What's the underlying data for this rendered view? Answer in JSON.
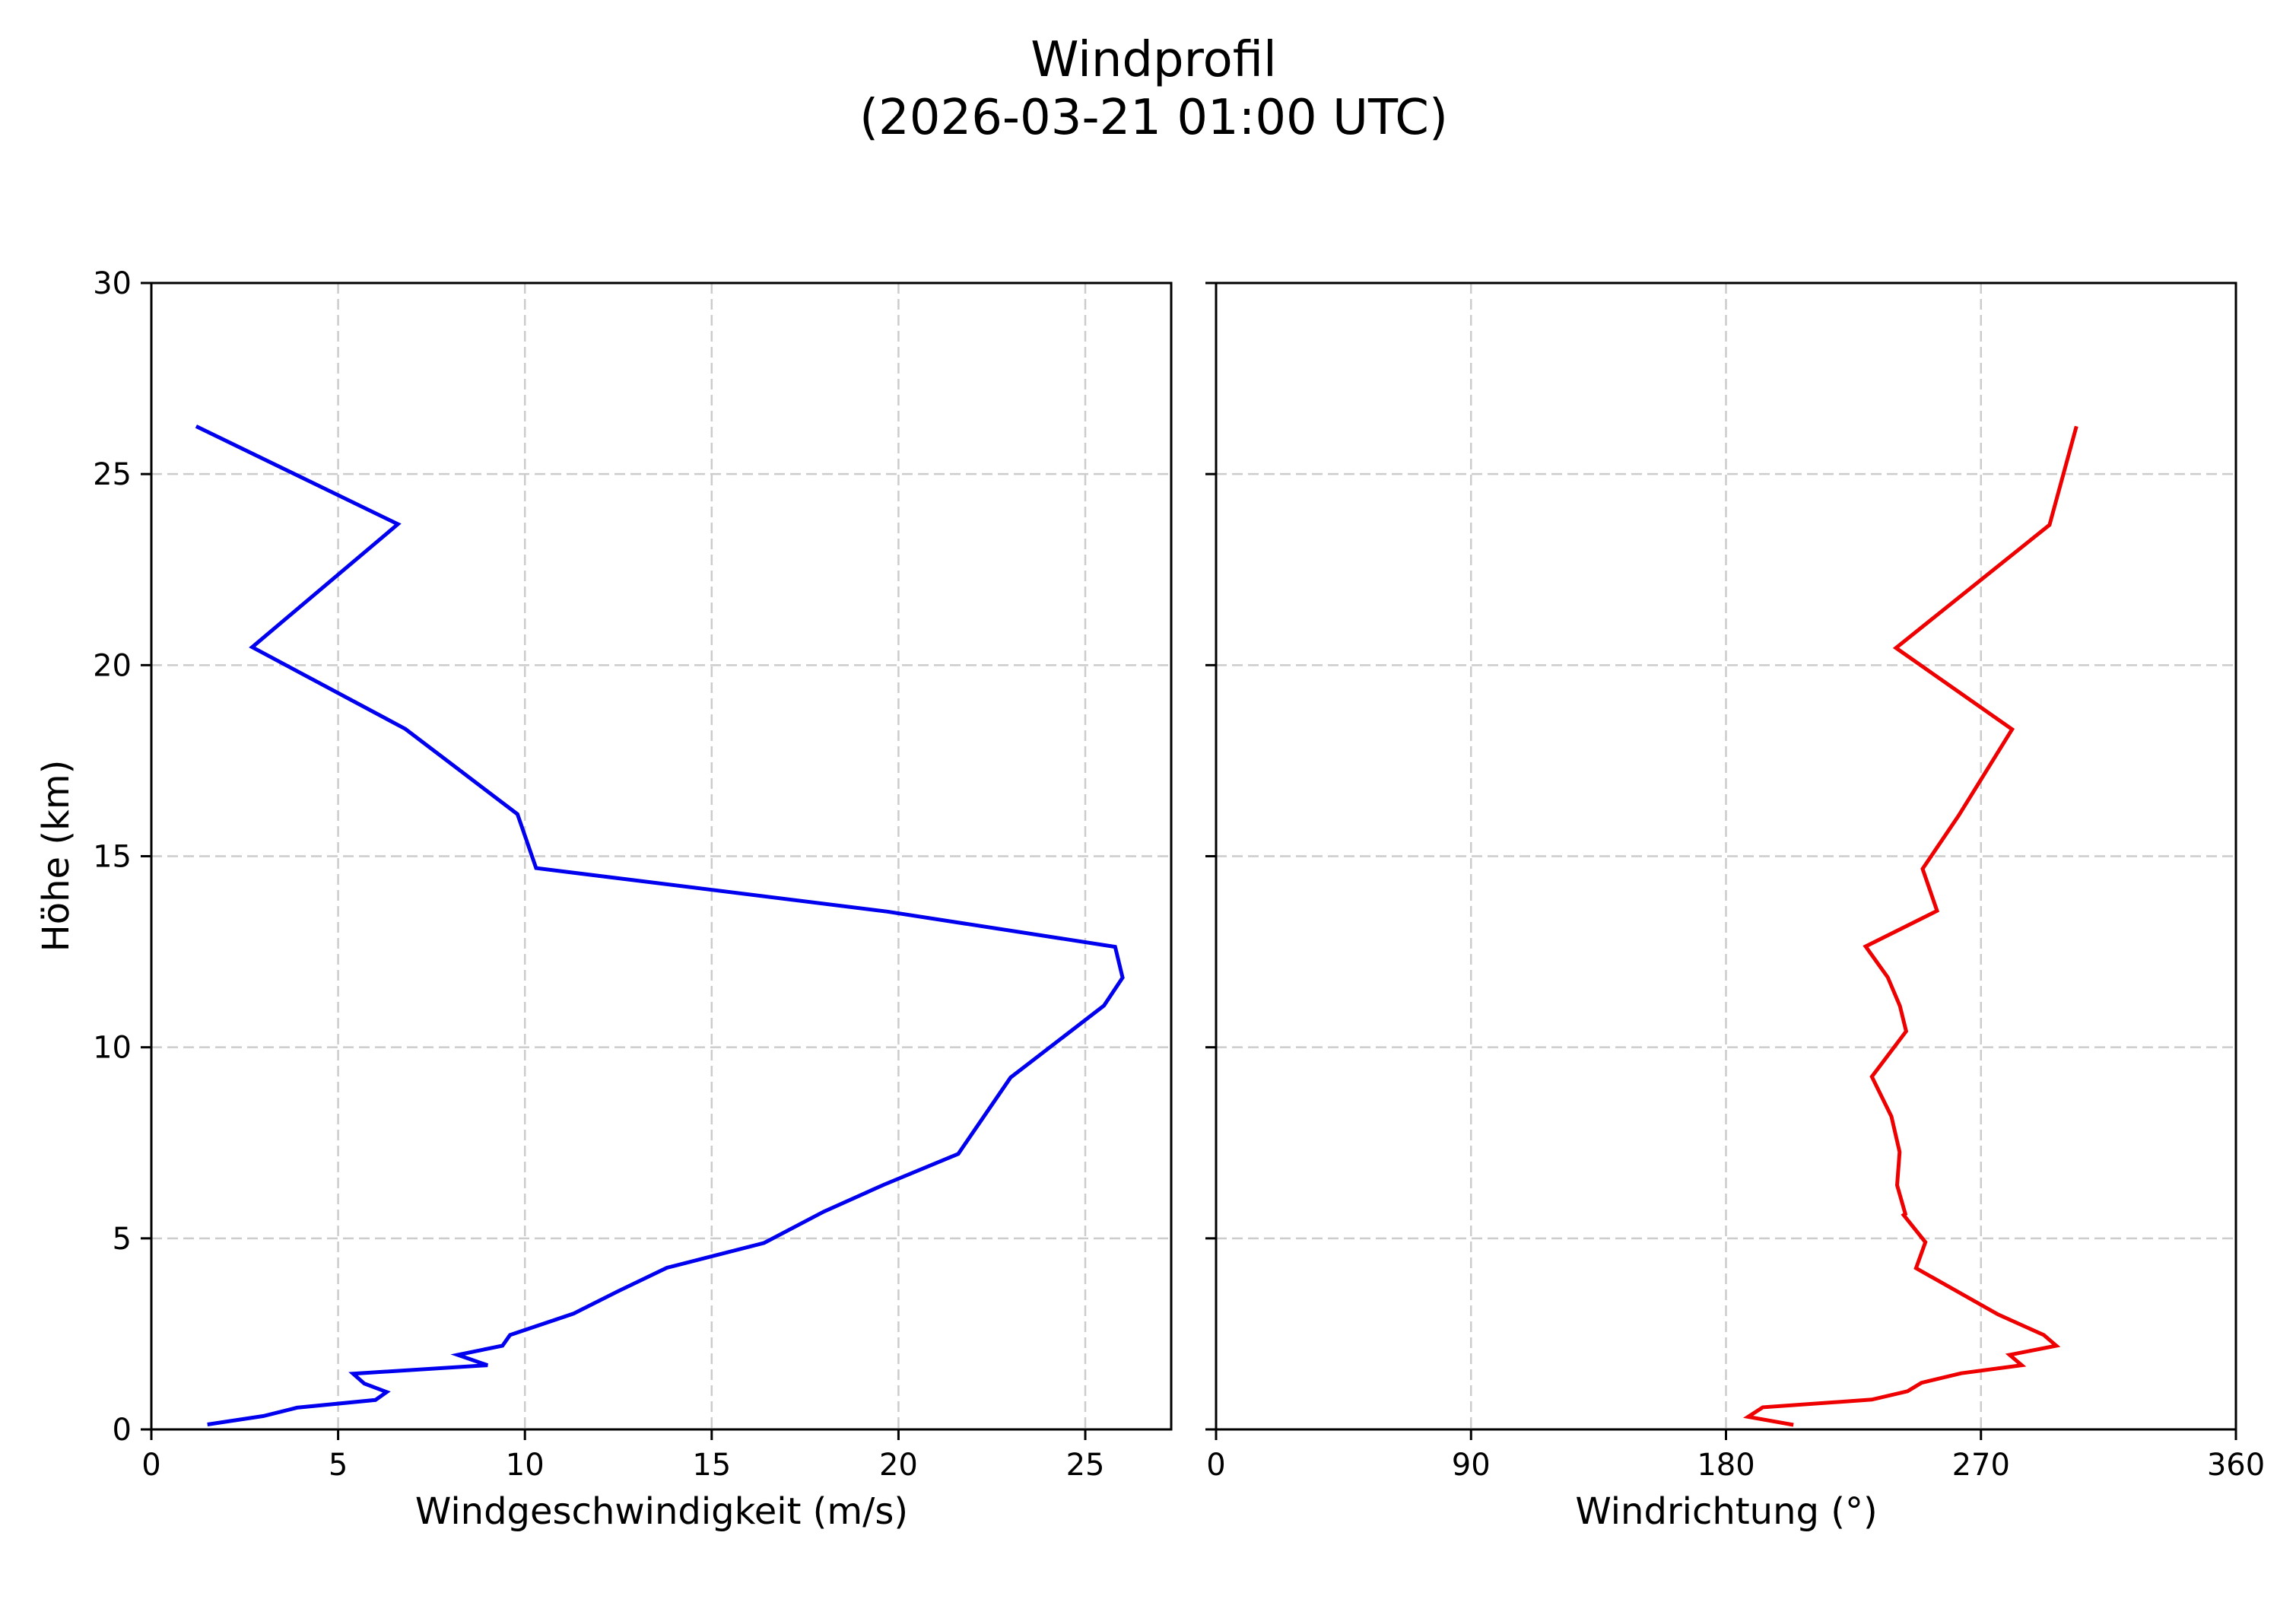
{
  "title": {
    "line1": "Windprofil",
    "line2": "(2026-03-21 01:00 UTC)"
  },
  "colors": {
    "speed_line": "#0000ee",
    "direction_line": "#ee0000",
    "grid": "#cccccc",
    "axis": "#000000"
  },
  "chart_data": [
    {
      "type": "line",
      "title": "Windprofil (2026-03-21 01:00 UTC)",
      "xlabel": "Windgeschwindigkeit (m/s)",
      "ylabel": "Höhe (km)",
      "xlim": [
        0,
        27.3
      ],
      "ylim": [
        0,
        30
      ],
      "xticks": [
        0,
        5,
        10,
        15,
        20,
        25
      ],
      "yticks": [
        0,
        5,
        10,
        15,
        20,
        25,
        30
      ],
      "grid": true,
      "grid_style": "dashed",
      "series": [
        {
          "name": "Windgeschwindigkeit",
          "color": "#0000ee",
          "x": [
            1.5,
            3.0,
            3.9,
            6.0,
            6.3,
            5.7,
            5.4,
            9.0,
            8.2,
            9.4,
            9.6,
            11.3,
            12.5,
            13.8,
            16.4,
            18.0,
            19.6,
            21.6,
            23.0,
            25.5,
            26.0,
            25.8,
            19.7,
            10.3,
            9.8,
            6.8,
            2.7,
            6.6,
            1.2
          ],
          "y": [
            0.13,
            0.35,
            0.57,
            0.77,
            0.98,
            1.2,
            1.46,
            1.68,
            1.95,
            2.19,
            2.47,
            3.03,
            3.62,
            4.23,
            4.88,
            5.7,
            6.4,
            7.21,
            9.21,
            11.09,
            11.82,
            12.63,
            13.55,
            14.69,
            16.1,
            18.33,
            20.47,
            23.69,
            26.25
          ]
        }
      ]
    },
    {
      "type": "line",
      "xlabel": "Windrichtung (°)",
      "ylabel": "",
      "xlim": [
        0,
        360
      ],
      "ylim": [
        0,
        30
      ],
      "xticks": [
        0,
        90,
        180,
        270,
        360
      ],
      "yticks": [
        0,
        5,
        10,
        15,
        20,
        25,
        30
      ],
      "sharey": true,
      "grid": true,
      "grid_style": "dashed",
      "series": [
        {
          "name": "Windrichtung",
          "color": "#ee0000",
          "x": [
            203.8,
            187.8,
            193.0,
            231.5,
            244.1,
            249.0,
            263.0,
            284.4,
            280.1,
            296.6,
            292.2,
            276.0,
            247.1,
            250.4,
            242.7,
            243.3,
            240.4,
            241.3,
            238.4,
            231.5,
            243.6,
            241.4,
            237.1,
            229.3,
            254.5,
            249.4,
            262.1,
            281.0,
            240.0,
            294.2,
            303.7
          ],
          "y": [
            0.12,
            0.33,
            0.58,
            0.78,
            1.0,
            1.22,
            1.47,
            1.68,
            1.95,
            2.19,
            2.47,
            3.01,
            4.22,
            4.9,
            5.61,
            5.64,
            6.39,
            7.26,
            8.19,
            9.23,
            10.42,
            11.08,
            11.83,
            12.64,
            13.57,
            14.67,
            16.06,
            18.32,
            20.45,
            23.67,
            26.25
          ]
        }
      ]
    }
  ]
}
